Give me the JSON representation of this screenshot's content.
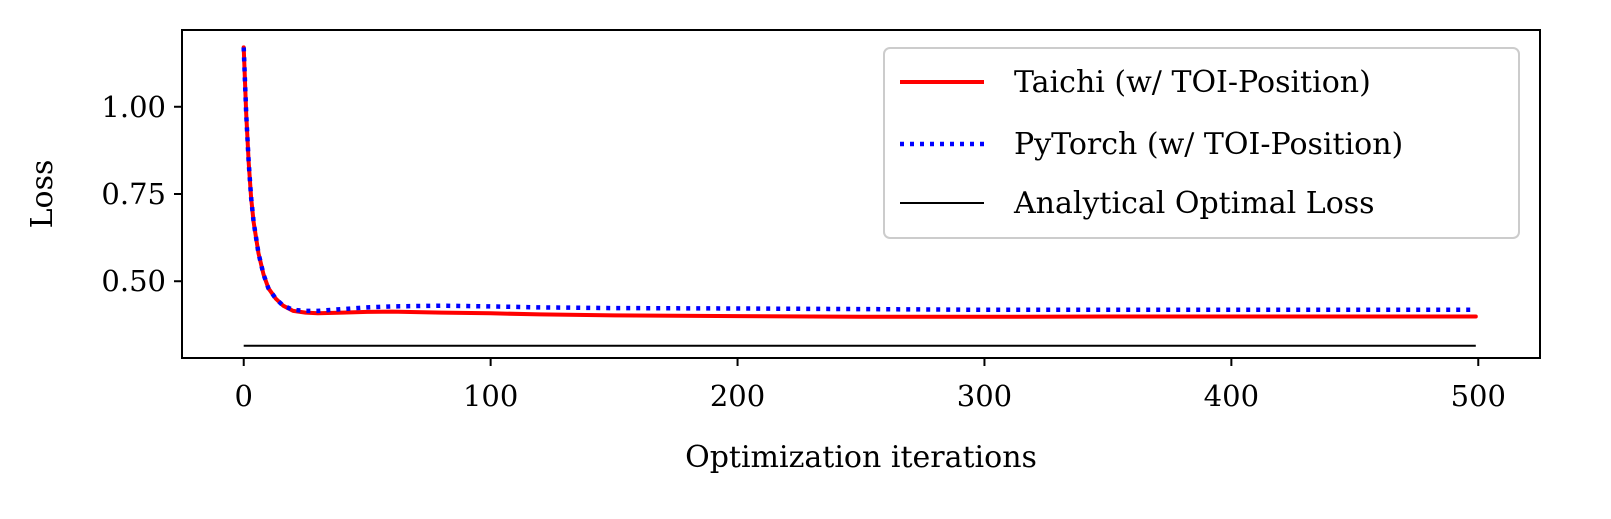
{
  "chart_data": {
    "type": "line",
    "title": "",
    "xlabel": "Optimization iterations",
    "ylabel": "Loss",
    "xlim": [
      -25,
      525
    ],
    "ylim": [
      0.28,
      1.22
    ],
    "xticks": [
      0,
      100,
      200,
      300,
      400,
      500
    ],
    "xtick_labels": [
      "0",
      "100",
      "200",
      "300",
      "400",
      "500"
    ],
    "yticks": [
      0.5,
      0.75,
      1.0
    ],
    "ytick_labels": [
      "0.50",
      "0.75",
      "1.00"
    ],
    "grid": false,
    "legend_position": "top-right",
    "series": [
      {
        "name": "Taichi (w/ TOI-Position)",
        "color": "#ff0000",
        "style": "solid",
        "x": [
          0,
          1,
          2,
          3,
          4,
          6,
          8,
          10,
          13,
          16,
          20,
          25,
          30,
          40,
          50,
          60,
          80,
          100,
          120,
          150,
          200,
          250,
          300,
          350,
          400,
          450,
          499
        ],
        "y": [
          1.17,
          0.98,
          0.84,
          0.74,
          0.67,
          0.58,
          0.52,
          0.48,
          0.45,
          0.43,
          0.415,
          0.41,
          0.408,
          0.41,
          0.412,
          0.413,
          0.41,
          0.408,
          0.405,
          0.402,
          0.4,
          0.398,
          0.398,
          0.399,
          0.399,
          0.399,
          0.399
        ]
      },
      {
        "name": "PyTorch (w/ TOI-Position)",
        "color": "#0000ff",
        "style": "dotted",
        "x": [
          0,
          1,
          2,
          3,
          4,
          6,
          8,
          10,
          13,
          16,
          20,
          25,
          30,
          40,
          50,
          60,
          80,
          100,
          120,
          150,
          200,
          250,
          300,
          350,
          400,
          450,
          499
        ],
        "y": [
          1.17,
          0.98,
          0.84,
          0.74,
          0.67,
          0.58,
          0.52,
          0.48,
          0.45,
          0.43,
          0.418,
          0.415,
          0.415,
          0.42,
          0.425,
          0.428,
          0.43,
          0.428,
          0.425,
          0.423,
          0.422,
          0.42,
          0.418,
          0.418,
          0.418,
          0.418,
          0.418
        ]
      },
      {
        "name": "Analytical Optimal Loss",
        "color": "#000000",
        "style": "solid-thin",
        "x": [
          0,
          499
        ],
        "y": [
          0.315,
          0.315
        ]
      }
    ]
  }
}
